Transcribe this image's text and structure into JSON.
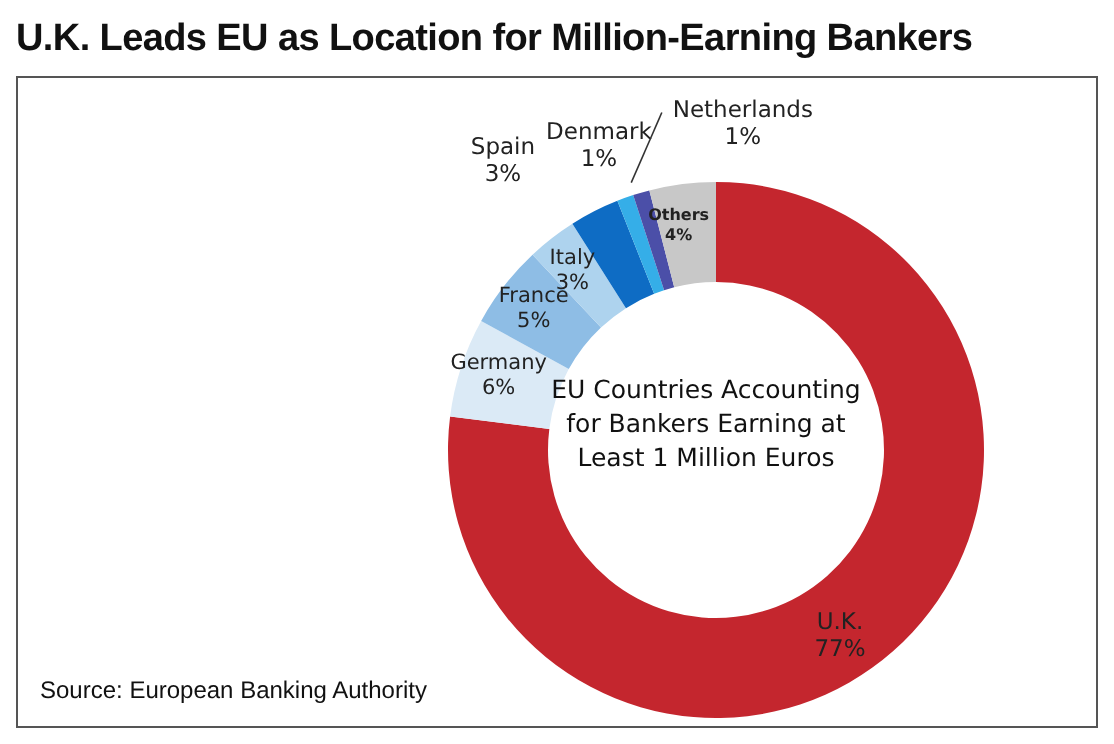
{
  "chart_data": {
    "type": "donut",
    "title": "U.K. Leads EU as Location for Million-Earning Bankers",
    "categories": [
      "U.K.",
      "Germany",
      "France",
      "Italy",
      "Spain",
      "Denmark",
      "Netherlands",
      "Others"
    ],
    "values": [
      77,
      6,
      5,
      3,
      3,
      1,
      1,
      4
    ],
    "colors": [
      "#c4262e",
      "#dbeaf6",
      "#8ebde5",
      "#aed3ee",
      "#0e6cc4",
      "#35aee8",
      "#4b4fa8",
      "#c8c8c8"
    ],
    "value_labels": [
      "77%",
      "6%",
      "5%",
      "3%",
      "3%",
      "1%",
      "1%",
      "4%"
    ],
    "annotations": [
      "EU Countries Accounting for Bankers Earning at Least 1 Million Euros",
      "Source: European Banking Authority"
    ],
    "legend": false
  }
}
